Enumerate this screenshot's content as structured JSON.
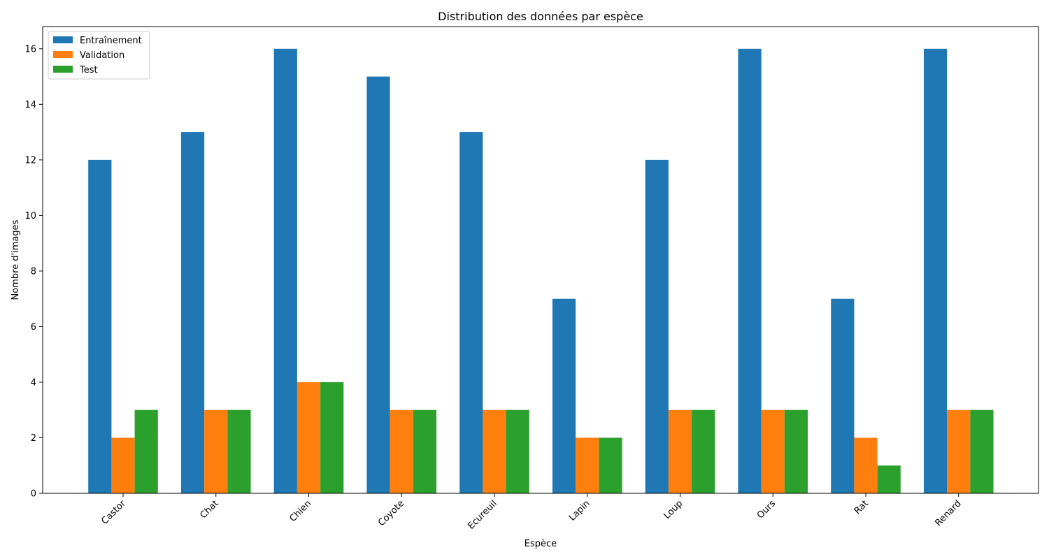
{
  "chart_data": {
    "type": "bar",
    "title": "Distribution des données par espèce",
    "xlabel": "Espèce",
    "ylabel": "Nombre d'images",
    "categories": [
      "Castor",
      "Chat",
      "Chien",
      "Coyote",
      "Ecureuil",
      "Lapin",
      "Loup",
      "Ours",
      "Rat",
      "Renard"
    ],
    "series": [
      {
        "name": "Entraînement",
        "color": "#1f77b4",
        "values": [
          12,
          13,
          16,
          15,
          13,
          7,
          12,
          16,
          7,
          16
        ]
      },
      {
        "name": "Validation",
        "color": "#ff7f0e",
        "values": [
          2,
          3,
          4,
          3,
          3,
          2,
          3,
          3,
          2,
          3
        ]
      },
      {
        "name": "Test",
        "color": "#2ca02c",
        "values": [
          3,
          3,
          4,
          3,
          3,
          2,
          3,
          3,
          1,
          3
        ]
      }
    ],
    "ylim": [
      0,
      16.8
    ],
    "yticks": [
      0,
      2,
      4,
      6,
      8,
      10,
      12,
      14,
      16
    ],
    "grid": false,
    "legend_position": "top-left"
  }
}
